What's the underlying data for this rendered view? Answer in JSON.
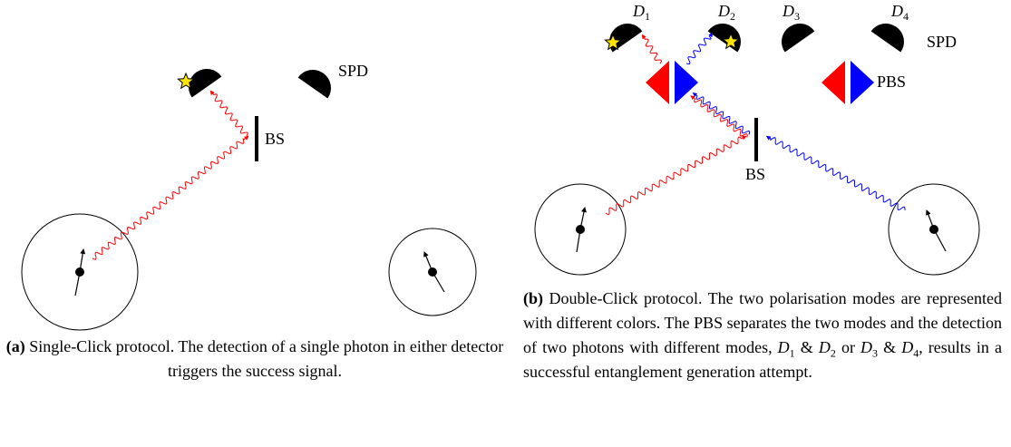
{
  "panel_a": {
    "labels": {
      "detector": "SPD",
      "splitter": "BS"
    },
    "caption": {
      "label": "(a)",
      "text": "Single-Click protocol. The detection of a single photon in either detector triggers the success signal."
    }
  },
  "panel_b": {
    "detectors": [
      {
        "letter": "D",
        "sub": "1"
      },
      {
        "letter": "D",
        "sub": "2"
      },
      {
        "letter": "D",
        "sub": "3"
      },
      {
        "letter": "D",
        "sub": "4"
      }
    ],
    "labels": {
      "detector": "SPD",
      "polariser": "PBS",
      "splitter": "BS"
    },
    "caption": {
      "label": "(b)",
      "parts": [
        "Double-Click protocol. The two polarisation modes are represented with different colors. The PBS separates the two modes and the detection of two photons with different modes, ",
        {
          "letter": "D",
          "sub": "1"
        },
        " & ",
        {
          "letter": "D",
          "sub": "2"
        },
        " or ",
        {
          "letter": "D",
          "sub": "3"
        },
        " & ",
        {
          "letter": "D",
          "sub": "4"
        },
        ", results in a successful entanglement generation attempt."
      ]
    }
  }
}
